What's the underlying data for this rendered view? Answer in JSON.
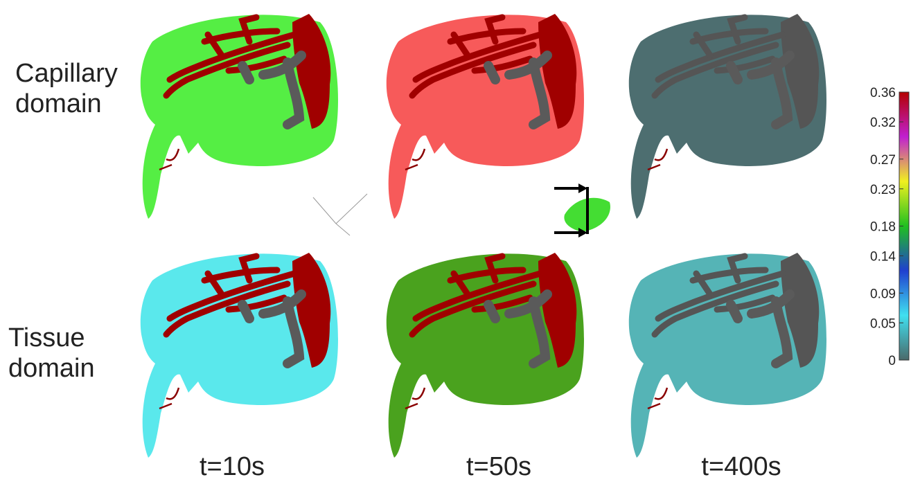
{
  "row_labels": [
    [
      "Capillary",
      "domain"
    ],
    [
      "Tissue",
      "domain"
    ]
  ],
  "column_labels": [
    "t=10s",
    "t=50s",
    "t=400s"
  ],
  "panels": [
    [
      {
        "fill": "#55ee44",
        "vessel": "#a00000"
      },
      {
        "fill": "#f75a5a",
        "vessel": "#a00000"
      },
      {
        "fill": "#4d6e70",
        "vessel": "#555555"
      }
    ],
    [
      {
        "fill": "#5ae8ec",
        "vessel": "#a00000"
      },
      {
        "fill": "#4aa21e",
        "vessel": "#a00000"
      },
      {
        "fill": "#55b4b6",
        "vessel": "#555555"
      }
    ]
  ],
  "colorbar": {
    "ticks": [
      0.36,
      0.32,
      0.27,
      0.23,
      0.18,
      0.14,
      0.09,
      0.05,
      0
    ],
    "colors": [
      "#b40000",
      "#c020d0",
      "#f0f020",
      "#20c020",
      "#2040d0",
      "#40e0f0",
      "#4a6a6a"
    ]
  }
}
